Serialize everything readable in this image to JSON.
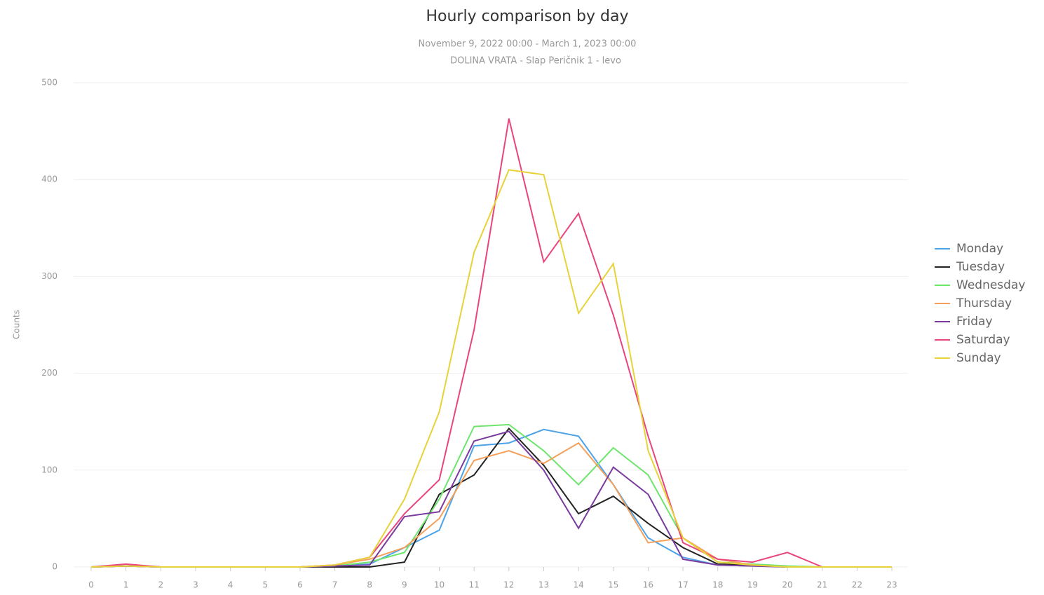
{
  "chart_data": {
    "type": "line",
    "title": "Hourly comparison by day",
    "subtitle": [
      "November 9, 2022 00:00 - March 1, 2023 00:00",
      "DOLINA VRATA - Slap Peričnik 1 - levo"
    ],
    "y_label": "Counts",
    "categories": [
      "0",
      "1",
      "2",
      "3",
      "4",
      "5",
      "6",
      "7",
      "8",
      "9",
      "10",
      "11",
      "12",
      "13",
      "14",
      "15",
      "16",
      "17",
      "18",
      "19",
      "20",
      "21",
      "22",
      "23"
    ],
    "series": [
      {
        "name": "Monday",
        "color": "#4da3e8",
        "values": [
          0,
          1,
          0,
          0,
          0,
          0,
          0,
          1,
          3,
          20,
          38,
          125,
          128,
          142,
          135,
          85,
          30,
          10,
          2,
          1,
          0,
          0,
          0,
          0
        ]
      },
      {
        "name": "Tuesday",
        "color": "#222222",
        "values": [
          0,
          1,
          0,
          0,
          0,
          0,
          0,
          0,
          0,
          5,
          75,
          95,
          143,
          105,
          55,
          73,
          45,
          20,
          3,
          2,
          0,
          0,
          0,
          0
        ]
      },
      {
        "name": "Wednesday",
        "color": "#6ee56e",
        "values": [
          0,
          1,
          0,
          0,
          0,
          0,
          0,
          1,
          5,
          15,
          70,
          145,
          147,
          120,
          85,
          123,
          95,
          30,
          5,
          3,
          1,
          0,
          0,
          0
        ]
      },
      {
        "name": "Thursday",
        "color": "#f5a05a",
        "values": [
          0,
          1,
          0,
          0,
          0,
          0,
          0,
          2,
          8,
          20,
          50,
          110,
          120,
          107,
          128,
          85,
          25,
          30,
          8,
          2,
          0,
          0,
          0,
          0
        ]
      },
      {
        "name": "Friday",
        "color": "#7b3a9e",
        "values": [
          0,
          1,
          0,
          0,
          0,
          0,
          0,
          1,
          2,
          52,
          57,
          130,
          140,
          100,
          40,
          103,
          75,
          8,
          2,
          1,
          0,
          0,
          0,
          0
        ]
      },
      {
        "name": "Saturday",
        "color": "#e8457f",
        "values": [
          0,
          3,
          0,
          0,
          0,
          0,
          0,
          2,
          10,
          55,
          90,
          245,
          463,
          315,
          365,
          260,
          135,
          25,
          8,
          5,
          15,
          0,
          0,
          0
        ]
      },
      {
        "name": "Sunday",
        "color": "#e8d23a",
        "values": [
          0,
          1,
          0,
          0,
          0,
          0,
          0,
          2,
          10,
          70,
          160,
          325,
          410,
          405,
          262,
          313,
          120,
          30,
          5,
          2,
          0,
          0,
          0,
          0
        ]
      }
    ],
    "ylim": [
      0,
      500
    ],
    "yticks": [
      0,
      100,
      200,
      300,
      400,
      500
    ],
    "grid": true,
    "legend": "right"
  }
}
